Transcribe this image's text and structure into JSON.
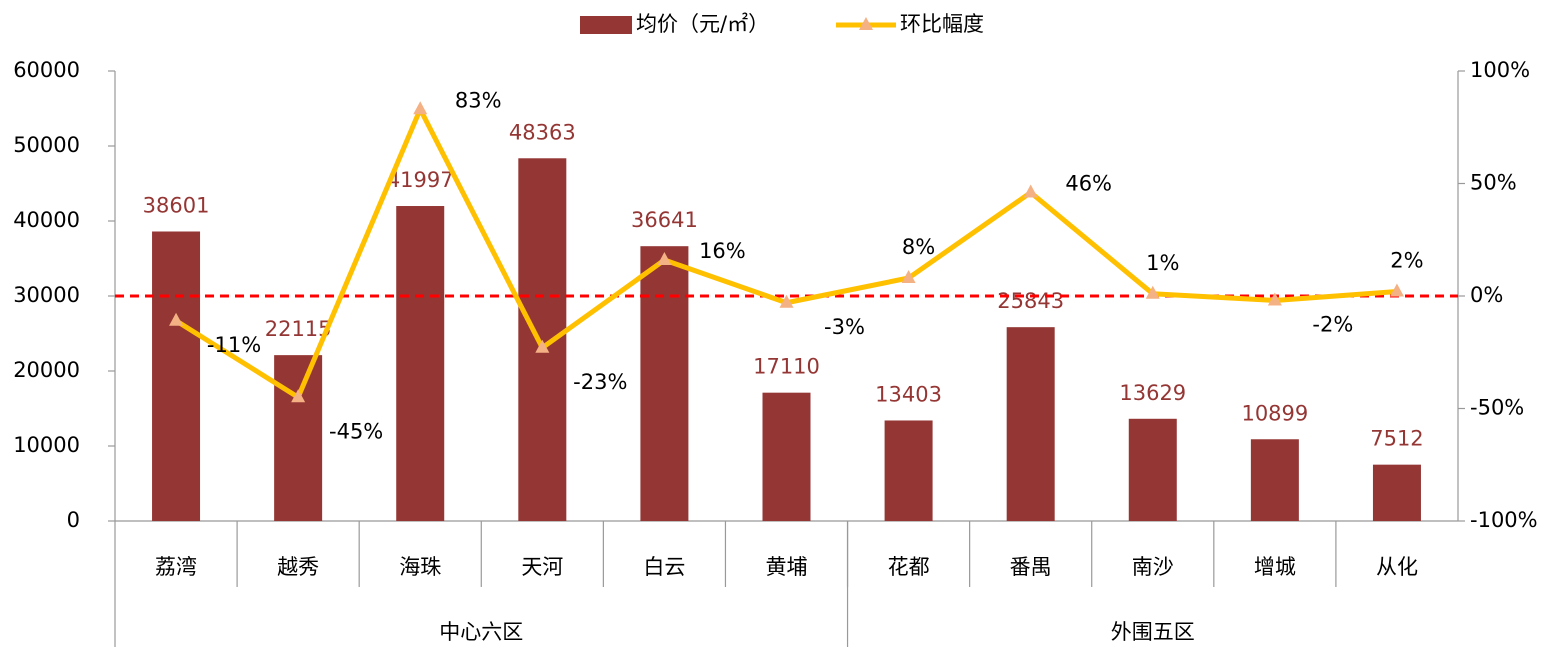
{
  "chart_data": {
    "type": "bar",
    "categories": [
      "荔湾",
      "越秀",
      "海珠",
      "天河",
      "白云",
      "黄埔",
      "花都",
      "番禺",
      "南沙",
      "增城",
      "从化"
    ],
    "groups": [
      {
        "name": "中心六区",
        "count": 6
      },
      {
        "name": "外围五区",
        "count": 5
      }
    ],
    "series": [
      {
        "name": "均价（元/㎡）",
        "type": "bar",
        "color": "#943634",
        "values": [
          38601,
          22115,
          41997,
          48363,
          36641,
          17110,
          13403,
          25843,
          13629,
          10899,
          7512
        ]
      },
      {
        "name": "环比幅度",
        "type": "line",
        "axis": "y2",
        "color": "#FFC000",
        "marker_color": "#F4B183",
        "values": [
          -11,
          -45,
          83,
          -23,
          16,
          -3,
          8,
          46,
          1,
          -2,
          2
        ],
        "value_labels": [
          "-11%",
          "-45%",
          "83%",
          "-23%",
          "16%",
          "-3%",
          "8%",
          "46%",
          "1%",
          "-2%",
          "2%"
        ]
      }
    ],
    "ylim": [
      0,
      60000
    ],
    "yticks": [
      0,
      10000,
      20000,
      30000,
      40000,
      50000,
      60000
    ],
    "y2lim": [
      -100,
      100
    ],
    "y2ticks": [
      {
        "value": -100,
        "label": "-100%"
      },
      {
        "value": -50,
        "label": "-50%"
      },
      {
        "value": 0,
        "label": "0%"
      },
      {
        "value": 50,
        "label": "50%"
      },
      {
        "value": 100,
        "label": "100%"
      }
    ],
    "y2_reference": 0,
    "reference_color": "#FF0000",
    "legend": "top"
  }
}
